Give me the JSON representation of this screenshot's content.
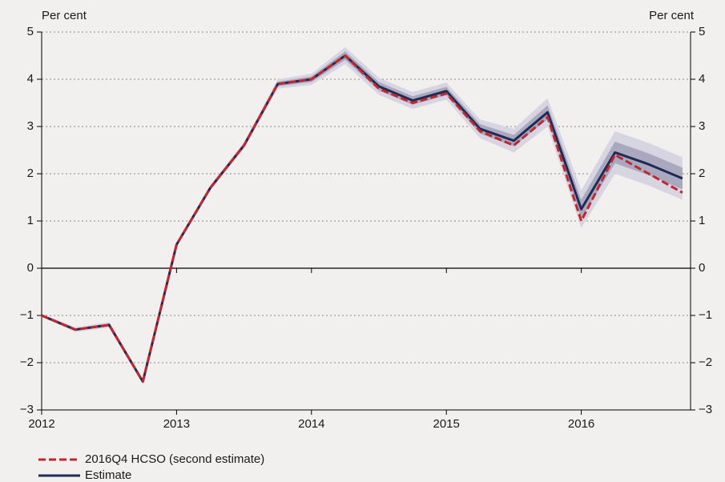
{
  "chart_data": {
    "type": "line",
    "y_label_left": "Per cent",
    "y_label_right": "Per cent",
    "x": [
      2012,
      2012.25,
      2012.5,
      2012.75,
      2013,
      2013.25,
      2013.5,
      2013.75,
      2014,
      2014.25,
      2014.5,
      2014.75,
      2015,
      2015.25,
      2015.5,
      2015.75,
      2016,
      2016.25,
      2016.5,
      2016.75
    ],
    "bands": [
      {
        "color": "#d7d5e1",
        "lower": [
          -1.03,
          -1.35,
          -1.26,
          -2.45,
          0.45,
          1.64,
          2.53,
          3.8,
          3.88,
          4.32,
          3.67,
          3.37,
          3.57,
          2.75,
          2.45,
          3.0,
          0.85,
          2.0,
          1.75,
          1.45
        ],
        "upper": [
          -0.97,
          -1.25,
          -1.14,
          -2.35,
          0.55,
          1.76,
          2.67,
          4.0,
          4.12,
          4.68,
          4.03,
          3.73,
          3.93,
          3.15,
          2.95,
          3.6,
          1.65,
          2.9,
          2.65,
          2.35
        ]
      },
      {
        "color": "#a9a8bf",
        "lower": [
          -1.01,
          -1.32,
          -1.23,
          -2.42,
          0.48,
          1.67,
          2.57,
          3.85,
          3.94,
          4.41,
          3.76,
          3.46,
          3.66,
          2.85,
          2.58,
          3.15,
          1.05,
          2.22,
          1.97,
          1.67
        ],
        "upper": [
          -0.99,
          -1.28,
          -1.17,
          -2.38,
          0.52,
          1.73,
          2.63,
          3.95,
          4.06,
          4.59,
          3.94,
          3.64,
          3.84,
          3.05,
          2.82,
          3.45,
          1.45,
          2.68,
          2.43,
          2.13
        ]
      }
    ],
    "series": [
      {
        "name": "2016Q4 HCSO (second estimate)",
        "color": "#c1272d",
        "dashed": true,
        "values": [
          -1,
          -1.3,
          -1.2,
          -2.4,
          0.5,
          1.7,
          2.6,
          3.9,
          4.0,
          4.5,
          3.8,
          3.5,
          3.7,
          2.9,
          2.6,
          3.2,
          1.0,
          2.4,
          2.0,
          1.6
        ]
      },
      {
        "name": "Estimate",
        "color": "#1f2a55",
        "dashed": false,
        "values": [
          -1,
          -1.3,
          -1.2,
          -2.4,
          0.5,
          1.7,
          2.6,
          3.9,
          4.0,
          4.5,
          3.85,
          3.55,
          3.75,
          2.95,
          2.7,
          3.3,
          1.25,
          2.45,
          2.2,
          1.9
        ]
      }
    ],
    "xlim": [
      2012,
      2016.81
    ],
    "xticks": [
      2012,
      2013,
      2014,
      2015,
      2016
    ],
    "ylim": [
      -3,
      5
    ],
    "yticks": [
      {
        "value": -3,
        "label": "−3"
      },
      {
        "value": -2,
        "label": "−2"
      },
      {
        "value": -1,
        "label": "−1"
      },
      0,
      1,
      2,
      3,
      4,
      5
    ],
    "grid": true
  }
}
